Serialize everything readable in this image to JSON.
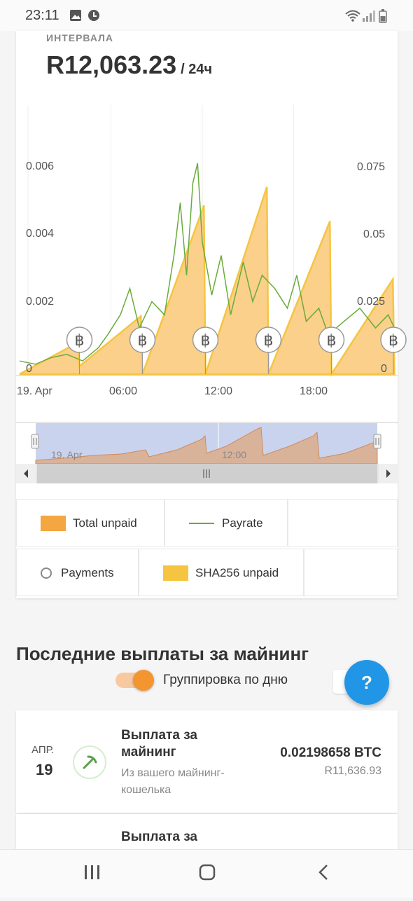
{
  "status_bar": {
    "time": "23:11"
  },
  "header": {
    "interval_label": "ИНТЕРВАЛА",
    "amount": "R12,063.23",
    "amount_suffix": "/ 24ч"
  },
  "chart_data": {
    "type": "area",
    "x_ticks": [
      "19. Apr",
      "06:00",
      "12:00",
      "18:00"
    ],
    "y_left_ticks": [
      "0.006",
      "0.004",
      "0.002",
      "0"
    ],
    "y_right_ticks": [
      "0.075",
      "0.05",
      "0.025",
      "0"
    ],
    "y_left_range": [
      0,
      0.008
    ],
    "y_right_range": [
      0,
      0.1
    ],
    "payment_marker": "฿",
    "payment_times_h": [
      3.8,
      7.8,
      11.8,
      15.8,
      19.8,
      23.8
    ],
    "series": [
      {
        "name": "Total unpaid",
        "color": "#f4a640"
      },
      {
        "name": "Payrate",
        "color": "#6aab3a"
      },
      {
        "name": "Payments"
      },
      {
        "name": "SHA256 unpaid",
        "color": "#f5c542"
      }
    ],
    "sha256_unpaid_points": [
      [
        0,
        0.0
      ],
      [
        3.7,
        0.012
      ],
      [
        3.8,
        0.003
      ],
      [
        7.7,
        0.022
      ],
      [
        7.8,
        0.0
      ],
      [
        11.7,
        0.064
      ],
      [
        11.8,
        0.0
      ],
      [
        15.7,
        0.071
      ],
      [
        15.8,
        0.0
      ],
      [
        19.7,
        0.058
      ],
      [
        19.8,
        0.0
      ],
      [
        23.7,
        0.036
      ],
      [
        23.8,
        0.0
      ]
    ],
    "payrate_points": [
      [
        0,
        0.0004
      ],
      [
        1,
        0.0003
      ],
      [
        2,
        0.0005
      ],
      [
        3,
        0.0006
      ],
      [
        4,
        0.0004
      ],
      [
        5,
        0.0008
      ],
      [
        5.6,
        0.0012
      ],
      [
        6.4,
        0.0018
      ],
      [
        7,
        0.0026
      ],
      [
        7.6,
        0.0014
      ],
      [
        8.4,
        0.0022
      ],
      [
        9.2,
        0.0018
      ],
      [
        9.8,
        0.0036
      ],
      [
        10.2,
        0.0052
      ],
      [
        10.6,
        0.003
      ],
      [
        11.0,
        0.0058
      ],
      [
        11.3,
        0.0064
      ],
      [
        11.6,
        0.004
      ],
      [
        12.2,
        0.0024
      ],
      [
        12.8,
        0.0036
      ],
      [
        13.4,
        0.0018
      ],
      [
        14.2,
        0.0034
      ],
      [
        14.8,
        0.0022
      ],
      [
        15.4,
        0.003
      ],
      [
        16.2,
        0.0026
      ],
      [
        17,
        0.002
      ],
      [
        17.6,
        0.003
      ],
      [
        18.2,
        0.0016
      ],
      [
        19,
        0.002
      ],
      [
        19.6,
        0.0012
      ],
      [
        20.6,
        0.0016
      ],
      [
        21.6,
        0.002
      ],
      [
        22.6,
        0.0014
      ],
      [
        23.4,
        0.0018
      ],
      [
        24,
        0.0012
      ]
    ],
    "navigator": {
      "labels": [
        "19. Apr",
        "12:00"
      ]
    }
  },
  "legend": {
    "total_unpaid": "Total unpaid",
    "payrate": "Payrate",
    "payments": "Payments",
    "sha256_unpaid": "SHA256 unpaid"
  },
  "section": {
    "title": "Последние выплаты за майнинг",
    "toggle_label": "Группировка по дню"
  },
  "fab": {
    "label": "?"
  },
  "payouts": [
    {
      "month": "АПР.",
      "day": "19",
      "title": "Выплата за майнинг",
      "subtitle": "Из вашего майнинг-кошелька",
      "btc": "0.02198658 BTC",
      "fiat": "R11,636.93"
    },
    {
      "title": "Выплата за"
    }
  ]
}
